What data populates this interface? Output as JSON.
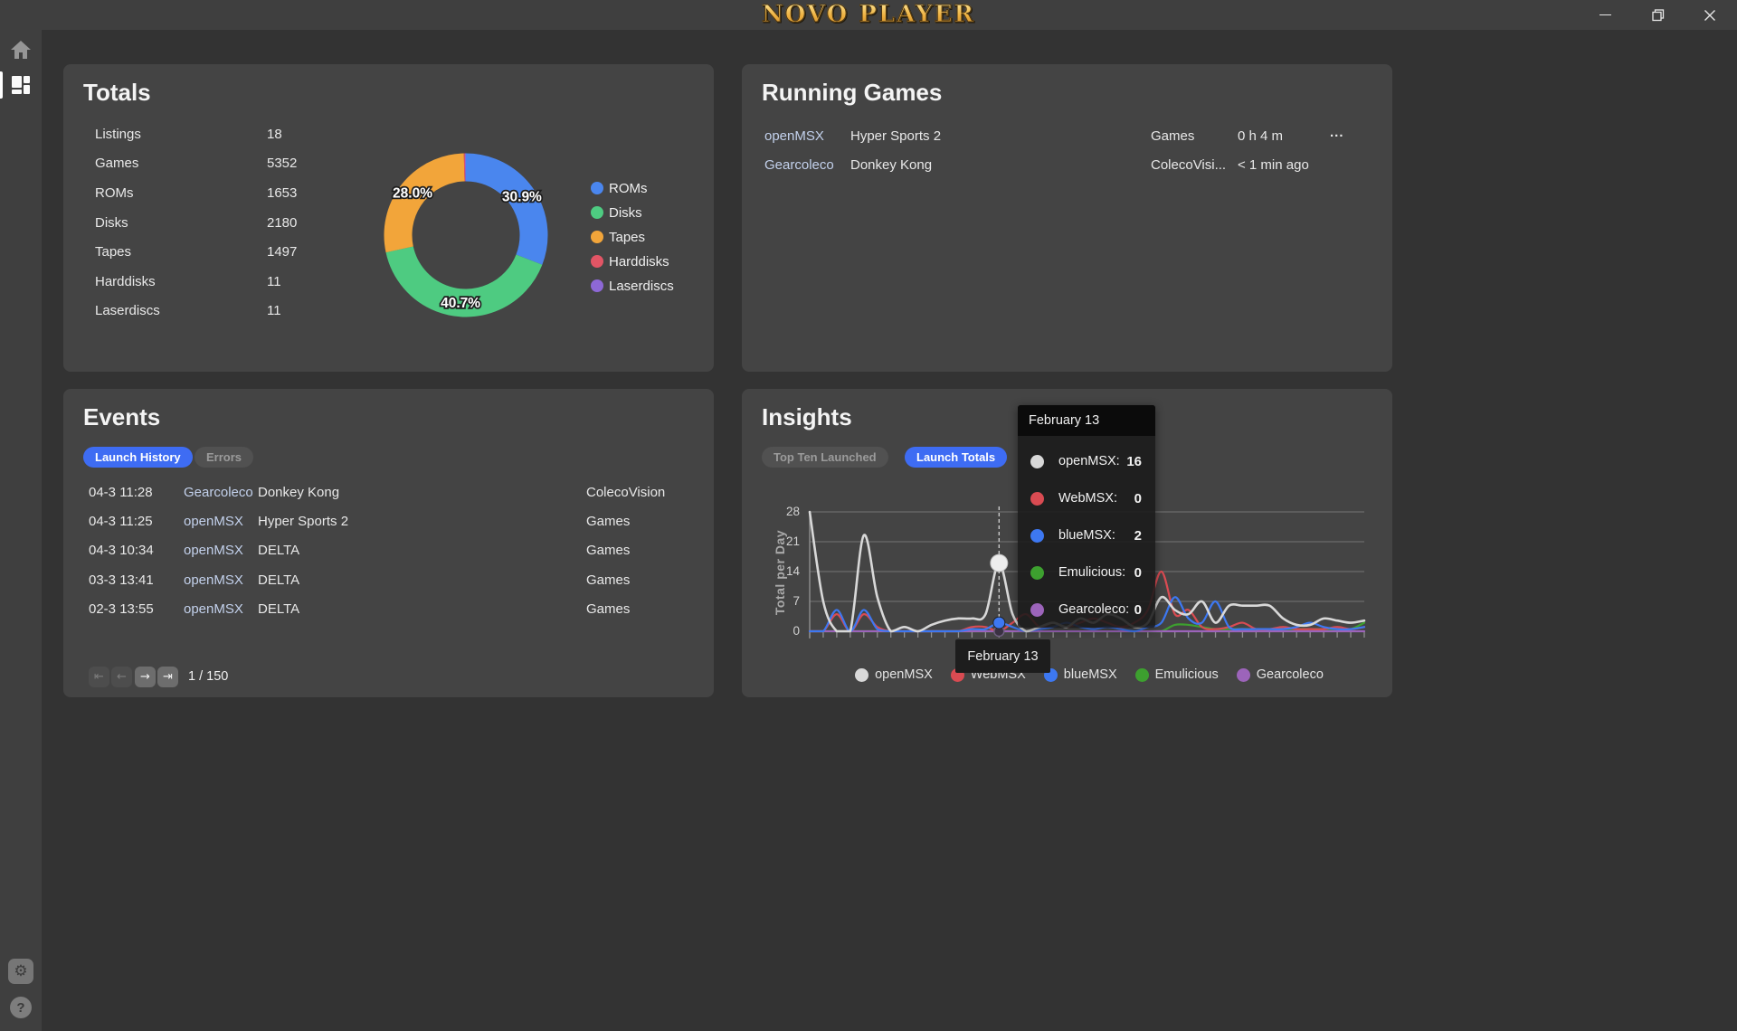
{
  "titlebar": {
    "logo": "NOVO PLAYER",
    "controls": [
      {
        "icon": "minimize-icon"
      },
      {
        "icon": "restore-icon"
      },
      {
        "icon": "close-icon"
      }
    ]
  },
  "sidebar": {
    "top": [
      {
        "icon": "home-icon",
        "active": false
      },
      {
        "icon": "dashboard-icon",
        "active": true
      }
    ],
    "bottom": [
      {
        "icon": "settings-gear-icon",
        "glyph": "⚙"
      },
      {
        "icon": "help-icon",
        "glyph": "?"
      }
    ]
  },
  "colors": {
    "accent_blue": "#3e6cf3",
    "link": "#c3d1ec",
    "card_bg": "#444444",
    "page_bg": "#333333",
    "chrome_bg": "#3f3f3f"
  },
  "totals": {
    "title": "Totals",
    "stats": [
      {
        "label": "Listings",
        "value": "18"
      },
      {
        "label": "Games",
        "value": "5352"
      },
      {
        "label": "ROMs",
        "value": "1653"
      },
      {
        "label": "Disks",
        "value": "2180"
      },
      {
        "label": "Tapes",
        "value": "1497"
      },
      {
        "label": "Harddisks",
        "value": "11"
      },
      {
        "label": "Laserdiscs",
        "value": "11"
      }
    ]
  },
  "running_games": {
    "title": "Running Games",
    "rows": [
      {
        "emulator": "openMSX",
        "game": "Hyper Sports 2",
        "listing": "Games",
        "time": "0 h 4 m",
        "menu": "..."
      },
      {
        "emulator": "Gearcoleco",
        "game": "Donkey Kong",
        "listing": "ColecoVisi...",
        "time": "< 1 min ago",
        "menu": ""
      }
    ]
  },
  "events": {
    "title": "Events",
    "tabs": [
      {
        "label": "Launch History",
        "active": true
      },
      {
        "label": "Errors",
        "active": false
      }
    ],
    "rows": [
      {
        "time": "04-3 11:28",
        "emulator": "Gearcoleco",
        "game": "Donkey Kong",
        "listing": "ColecoVision"
      },
      {
        "time": "04-3 11:25",
        "emulator": "openMSX",
        "game": "Hyper Sports 2",
        "listing": "Games"
      },
      {
        "time": "04-3 10:34",
        "emulator": "openMSX",
        "game": "DELTA",
        "listing": "Games"
      },
      {
        "time": "03-3 13:41",
        "emulator": "openMSX",
        "game": "DELTA",
        "listing": "Games"
      },
      {
        "time": "02-3 13:55",
        "emulator": "openMSX",
        "game": "DELTA",
        "listing": "Games"
      }
    ],
    "pagination": {
      "buttons": [
        {
          "icon": "first-page-icon",
          "glyph": "⇤",
          "enabled": false
        },
        {
          "icon": "prev-page-icon",
          "glyph": "←",
          "enabled": false
        },
        {
          "icon": "next-page-icon",
          "glyph": "→",
          "enabled": true
        },
        {
          "icon": "last-page-icon",
          "glyph": "⇥",
          "enabled": true
        }
      ],
      "label": "1 / 150"
    }
  },
  "insights": {
    "title": "Insights",
    "tabs": [
      {
        "label": "Top Ten Launched",
        "active": false
      },
      {
        "label": "Launch Totals",
        "active": true
      }
    ],
    "tooltip": {
      "title": "February 13",
      "rows": [
        {
          "label": "openMSX:",
          "value": "16"
        },
        {
          "label": "WebMSX:",
          "value": "0"
        },
        {
          "label": "blueMSX:",
          "value": "2"
        },
        {
          "label": "Emulicious:",
          "value": "0"
        },
        {
          "label": "Gearcoleco:",
          "value": "0"
        }
      ]
    },
    "axis_hover_label": "February 13",
    "legend": [
      "openMSX",
      "WebMSX",
      "blueMSX",
      "Emulicious",
      "Gearcoleco"
    ]
  },
  "chart_data": [
    {
      "type": "pie",
      "labels": [
        "ROMs",
        "Disks",
        "Tapes",
        "Harddisks",
        "Laserdiscs"
      ],
      "values": [
        1653,
        2180,
        1497,
        11,
        11
      ],
      "percent_labels": [
        "30.9%",
        "40.7%",
        "28.0%",
        "",
        ""
      ],
      "colors": [
        "#4a86ee",
        "#4ecb81",
        "#f2a53a",
        "#e25565",
        "#8d68d6"
      ],
      "legend_position": "right",
      "donut": true
    },
    {
      "type": "line",
      "ylabel": "Total per Day",
      "ylim": [
        0,
        28
      ],
      "yticks": [
        0,
        7,
        14,
        21,
        28
      ],
      "x_points": 42,
      "hover_index": 14,
      "hover_label": "February 13",
      "grid": true,
      "legend_position": "bottom",
      "series": [
        {
          "name": "openMSX",
          "color": "#d8d8d8",
          "values": [
            28,
            7,
            0,
            0,
            22.5,
            8,
            0,
            1,
            0,
            1.5,
            2.5,
            3,
            3,
            4,
            16,
            4,
            0,
            1,
            2,
            1,
            3,
            2,
            4,
            3,
            1,
            2,
            8,
            5,
            4,
            7,
            2,
            6,
            6,
            6,
            6,
            3,
            1.5,
            1.5,
            3,
            2.5,
            2,
            2.5
          ]
        },
        {
          "name": "WebMSX",
          "color": "#d94b52",
          "values": [
            0,
            0,
            4,
            0,
            4,
            1,
            0,
            0,
            0,
            0,
            0,
            0,
            1,
            1,
            0,
            2,
            4,
            1,
            2,
            1,
            2,
            3,
            2,
            1,
            2,
            5,
            14,
            4,
            5,
            1,
            0.5,
            1,
            2,
            0.5,
            0.5,
            1,
            0.5,
            0.5,
            0.5,
            1,
            0.5,
            1
          ]
        },
        {
          "name": "blueMSX",
          "color": "#3d78f2",
          "values": [
            0,
            0,
            5,
            0,
            5,
            0.5,
            0,
            0,
            0,
            0,
            0,
            0,
            0.5,
            0.5,
            2,
            1,
            0,
            0.5,
            1,
            2,
            1,
            0.5,
            1,
            0.5,
            0,
            1,
            2,
            8,
            3,
            2,
            7,
            1,
            0.5,
            0.5,
            0.5,
            0.5,
            1,
            2,
            1,
            0.5,
            0.5,
            1
          ]
        },
        {
          "name": "Emulicious",
          "color": "#3da02f",
          "values": [
            0,
            0,
            0,
            0,
            0,
            0,
            0,
            0,
            0,
            0,
            0,
            0,
            0,
            0,
            0,
            0,
            0,
            0,
            0,
            0,
            0,
            0,
            0,
            0,
            0,
            0,
            0,
            1.5,
            1.5,
            1,
            0.5,
            0.5,
            0.5,
            0.5,
            0.5,
            0.5,
            0.5,
            0.5,
            0.5,
            0.5,
            0.5,
            2
          ]
        },
        {
          "name": "Gearcoleco",
          "color": "#9c64ba",
          "values": [
            0,
            0,
            0,
            0,
            0,
            0,
            0,
            0,
            0,
            0,
            0,
            0,
            0,
            0,
            0,
            0,
            0,
            0,
            0,
            0,
            0,
            0,
            0,
            0,
            0,
            0,
            0,
            0,
            0,
            0,
            0,
            0,
            0,
            0,
            0,
            0,
            0,
            0,
            0,
            0,
            0,
            0
          ]
        }
      ]
    }
  ]
}
